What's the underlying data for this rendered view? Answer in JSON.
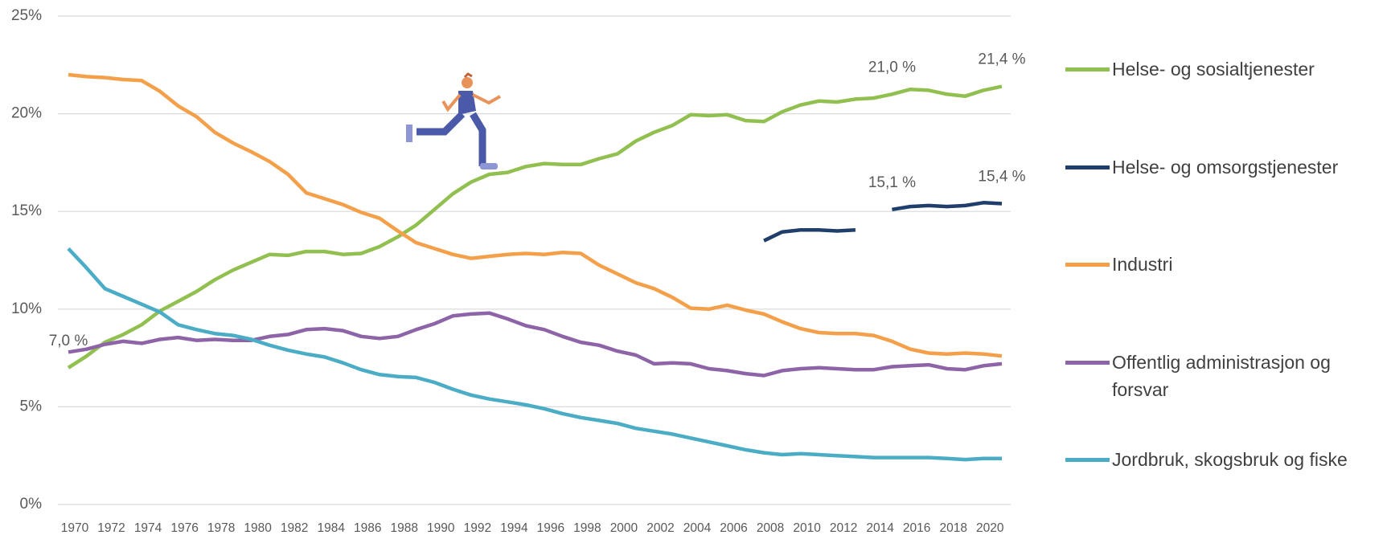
{
  "chart_data": {
    "type": "line",
    "x": [
      1970,
      1971,
      1972,
      1973,
      1974,
      1975,
      1976,
      1977,
      1978,
      1979,
      1980,
      1981,
      1982,
      1983,
      1984,
      1985,
      1986,
      1987,
      1988,
      1989,
      1990,
      1991,
      1992,
      1993,
      1994,
      1995,
      1996,
      1997,
      1998,
      1999,
      2000,
      2001,
      2002,
      2003,
      2004,
      2005,
      2006,
      2007,
      2008,
      2009,
      2010,
      2011,
      2012,
      2013,
      2014,
      2015,
      2016,
      2017,
      2018,
      2019,
      2020,
      2021
    ],
    "xlim": [
      1970,
      2021
    ],
    "xticks": [
      1970,
      1972,
      1974,
      1976,
      1978,
      1980,
      1982,
      1984,
      1986,
      1988,
      1990,
      1992,
      1994,
      1996,
      1998,
      2000,
      2002,
      2004,
      2006,
      2008,
      2010,
      2012,
      2014,
      2016,
      2018,
      2020
    ],
    "ylim": [
      0,
      25
    ],
    "yticks": [
      {
        "value": 0,
        "label": "0%"
      },
      {
        "value": 5,
        "label": "5%"
      },
      {
        "value": 10,
        "label": "10%"
      },
      {
        "value": 15,
        "label": "15%"
      },
      {
        "value": 20,
        "label": "20%"
      },
      {
        "value": 25,
        "label": "25%"
      }
    ],
    "grid": true,
    "legend": "right",
    "series": [
      {
        "name": "Helse- og sosialtjenester",
        "color": "#92c050",
        "values": [
          7.0,
          7.6,
          8.3,
          8.7,
          9.2,
          9.9,
          10.4,
          10.9,
          11.5,
          12.0,
          12.4,
          12.8,
          12.75,
          12.95,
          12.95,
          12.8,
          12.85,
          13.2,
          13.7,
          14.3,
          15.1,
          15.9,
          16.5,
          16.9,
          17.0,
          17.3,
          17.45,
          17.4,
          17.4,
          17.7,
          17.95,
          18.6,
          19.05,
          19.4,
          19.95,
          19.9,
          19.95,
          19.65,
          19.6,
          20.1,
          20.45,
          20.65,
          20.6,
          20.75,
          20.8,
          21.0,
          21.25,
          21.2,
          21.0,
          20.9,
          21.2,
          21.4
        ],
        "value_labels": [
          "7,0 %",
          null,
          null,
          null,
          null,
          null,
          null,
          null,
          null,
          null,
          null,
          null,
          null,
          null,
          null,
          null,
          null,
          null,
          null,
          null,
          null,
          null,
          null,
          null,
          null,
          null,
          null,
          null,
          null,
          null,
          null,
          null,
          null,
          null,
          null,
          null,
          null,
          null,
          null,
          null,
          null,
          null,
          null,
          null,
          null,
          "21,0 %",
          null,
          null,
          null,
          null,
          null,
          "21,4 %"
        ]
      },
      {
        "name": "Helse- og omsorgstjenester",
        "color": "#1f3e6b",
        "values": [
          null,
          null,
          null,
          null,
          null,
          null,
          null,
          null,
          null,
          null,
          null,
          null,
          null,
          null,
          null,
          null,
          null,
          null,
          null,
          null,
          null,
          null,
          null,
          null,
          null,
          null,
          null,
          null,
          null,
          null,
          null,
          null,
          null,
          null,
          null,
          null,
          null,
          null,
          13.5,
          13.95,
          14.05,
          14.05,
          14.0,
          14.05,
          null,
          15.1,
          15.25,
          15.3,
          15.25,
          15.3,
          15.45,
          15.4
        ],
        "value_labels": [
          null,
          null,
          null,
          null,
          null,
          null,
          null,
          null,
          null,
          null,
          null,
          null,
          null,
          null,
          null,
          null,
          null,
          null,
          null,
          null,
          null,
          null,
          null,
          null,
          null,
          null,
          null,
          null,
          null,
          null,
          null,
          null,
          null,
          null,
          null,
          null,
          null,
          null,
          null,
          null,
          null,
          null,
          null,
          null,
          null,
          "15,1 %",
          null,
          null,
          null,
          null,
          null,
          "15,4 %"
        ]
      },
      {
        "name": "Industri",
        "color": "#f4a04a",
        "values": [
          22.0,
          21.9,
          21.85,
          21.75,
          21.7,
          21.15,
          20.4,
          19.85,
          19.05,
          18.5,
          18.05,
          17.55,
          16.9,
          15.95,
          15.65,
          15.35,
          14.95,
          14.65,
          14.0,
          13.4,
          13.1,
          12.8,
          12.6,
          12.7,
          12.8,
          12.85,
          12.8,
          12.9,
          12.85,
          12.25,
          11.8,
          11.35,
          11.05,
          10.6,
          10.05,
          10.0,
          10.2,
          9.95,
          9.75,
          9.35,
          9.0,
          8.8,
          8.75,
          8.75,
          8.65,
          8.35,
          7.95,
          7.75,
          7.7,
          7.75,
          7.7,
          7.6
        ]
      },
      {
        "name": "Offentlig administrasjon og forsvar",
        "color": "#8e64a8",
        "values": [
          7.8,
          7.95,
          8.2,
          8.35,
          8.25,
          8.45,
          8.55,
          8.4,
          8.45,
          8.4,
          8.4,
          8.6,
          8.7,
          8.95,
          9.0,
          8.9,
          8.6,
          8.5,
          8.6,
          8.95,
          9.25,
          9.65,
          9.75,
          9.8,
          9.5,
          9.15,
          8.95,
          8.6,
          8.3,
          8.15,
          7.85,
          7.65,
          7.2,
          7.25,
          7.2,
          6.95,
          6.85,
          6.7,
          6.6,
          6.85,
          6.95,
          7.0,
          6.95,
          6.9,
          6.9,
          7.05,
          7.1,
          7.15,
          6.95,
          6.9,
          7.1,
          7.2
        ]
      },
      {
        "name": "Jordbruk, skogsbruk og fiske",
        "color": "#4bacc6",
        "values": [
          13.1,
          12.1,
          11.05,
          10.65,
          10.25,
          9.85,
          9.2,
          8.95,
          8.75,
          8.65,
          8.45,
          8.15,
          7.9,
          7.7,
          7.55,
          7.25,
          6.9,
          6.65,
          6.55,
          6.5,
          6.25,
          5.9,
          5.6,
          5.4,
          5.25,
          5.1,
          4.9,
          4.65,
          4.45,
          4.3,
          4.15,
          3.9,
          3.75,
          3.6,
          3.4,
          3.2,
          3.0,
          2.8,
          2.65,
          2.55,
          2.6,
          2.55,
          2.5,
          2.45,
          2.4,
          2.4,
          2.4,
          2.4,
          2.35,
          2.3,
          2.35,
          2.35
        ]
      }
    ]
  }
}
